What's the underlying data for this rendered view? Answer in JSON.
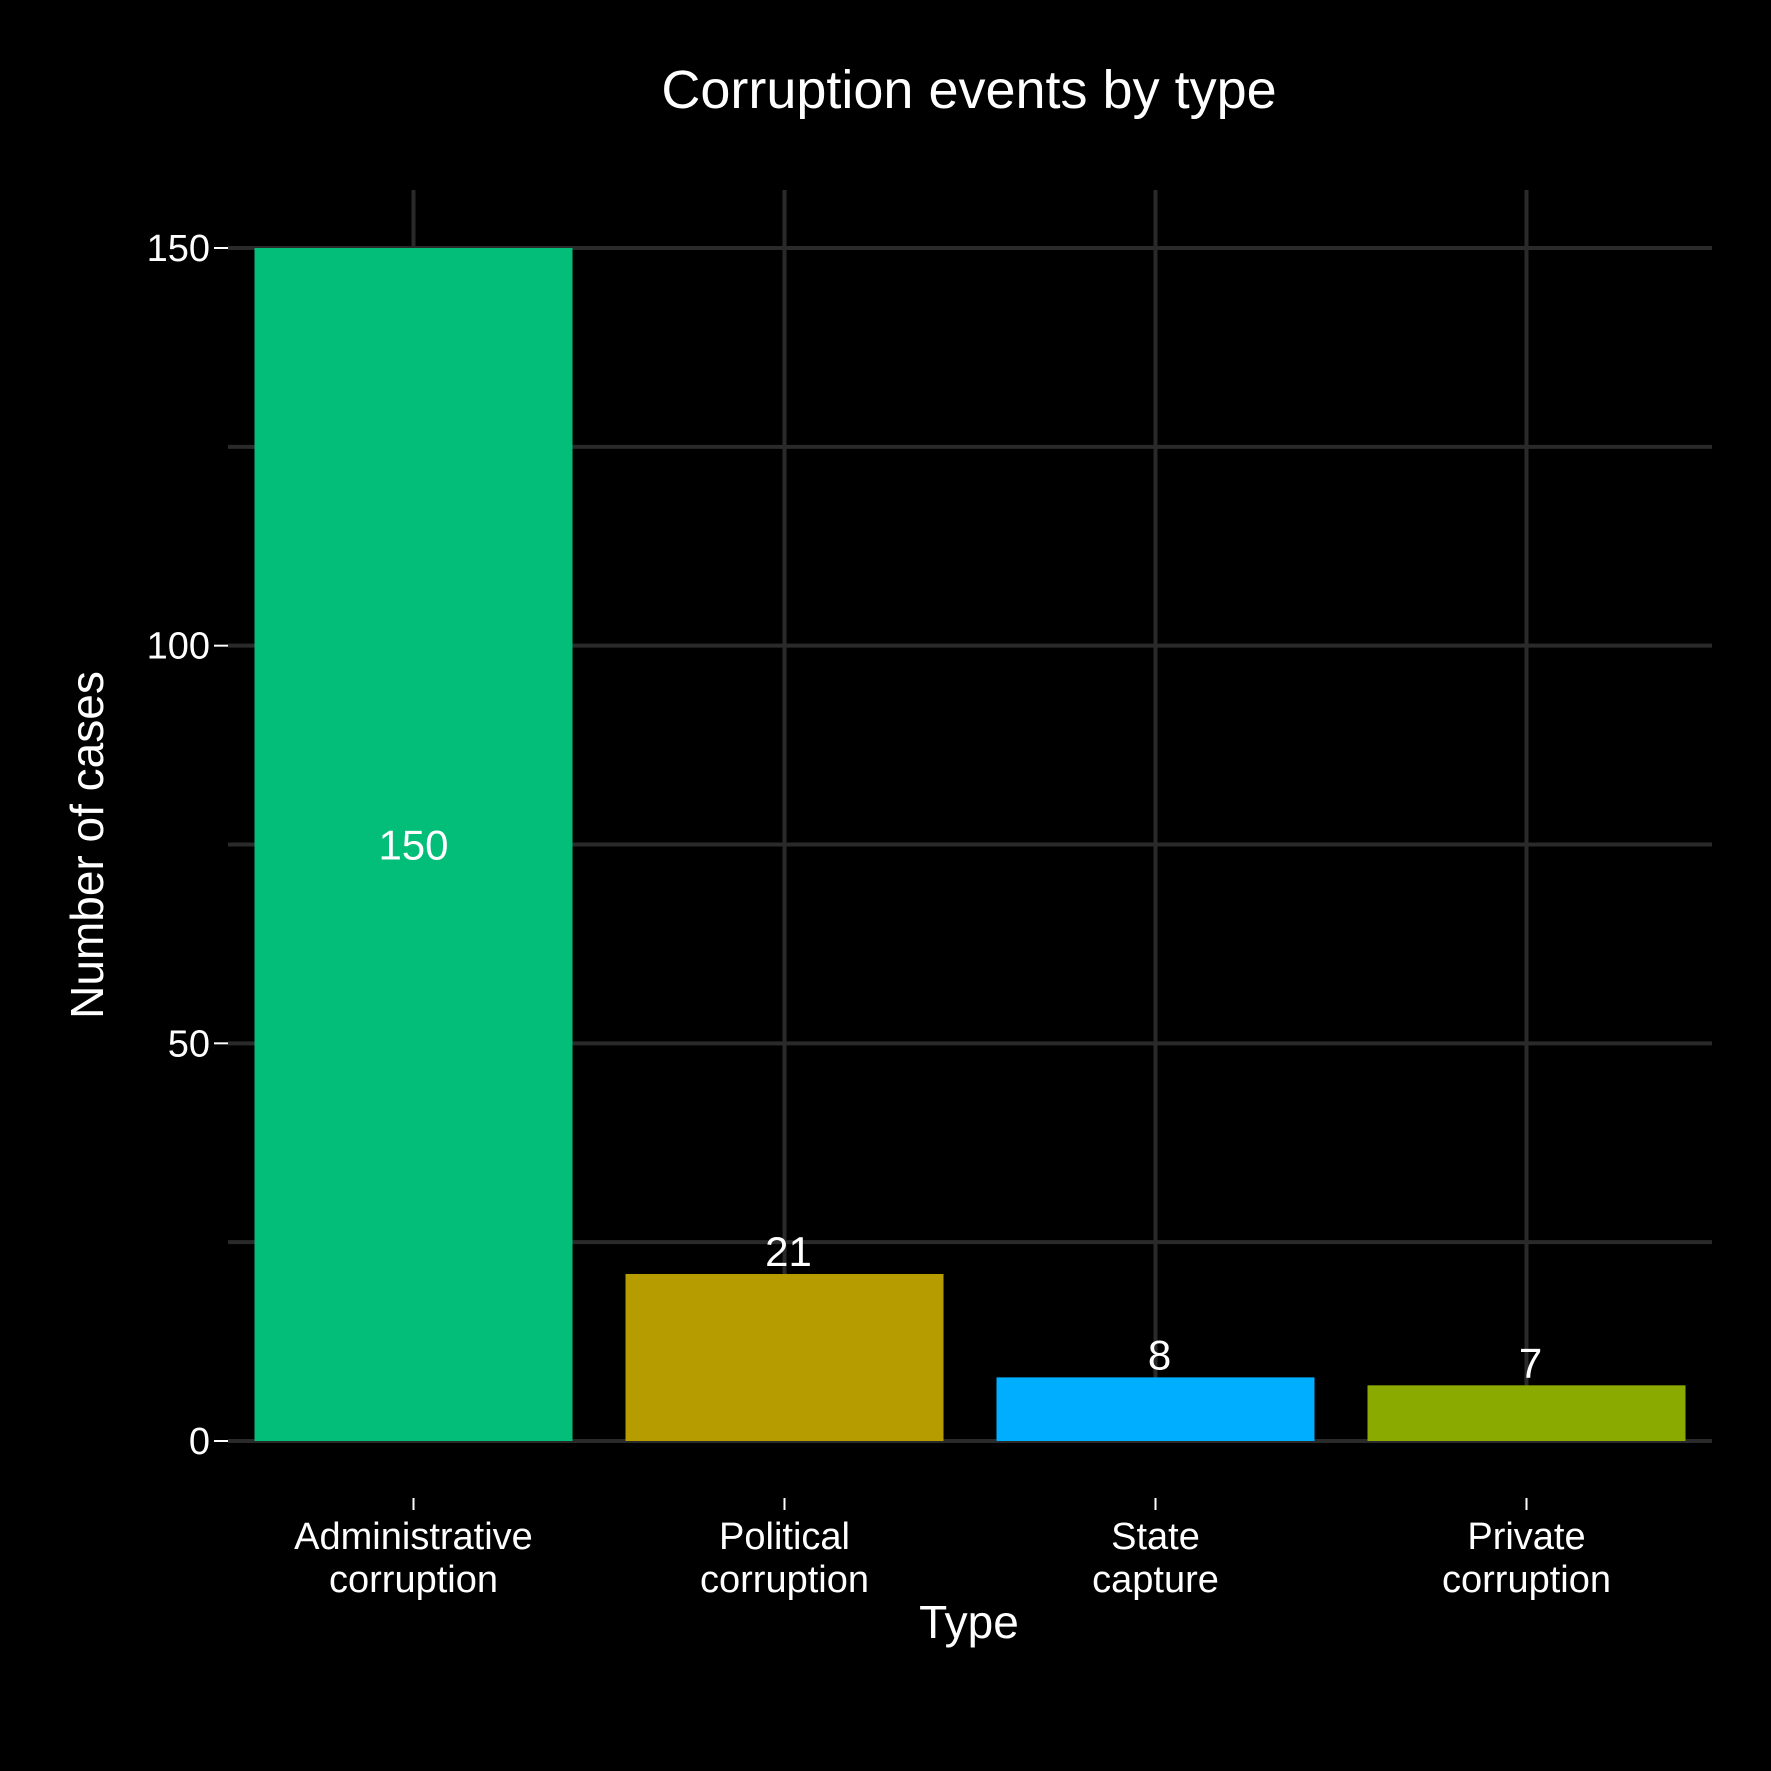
{
  "chart_data": {
    "type": "bar",
    "title": "Corruption events by type",
    "xlabel": "Type",
    "ylabel": "Number of cases",
    "categories": [
      [
        "Administrative",
        "corruption"
      ],
      [
        "Political",
        "corruption"
      ],
      [
        "State",
        "capture"
      ],
      [
        "Private",
        "corruption"
      ]
    ],
    "values": [
      150,
      21,
      8,
      7
    ],
    "value_labels": [
      "150",
      "21",
      "8",
      "7"
    ],
    "colors": [
      "#02be79",
      "#b79c00",
      "#00aeff",
      "#8aaa00"
    ],
    "yticks": [
      0,
      50,
      100,
      150
    ],
    "ytick_labels": [
      "0",
      "50",
      "100",
      "150"
    ],
    "ylim": [
      0,
      150
    ],
    "grid": true,
    "legend": "none",
    "background": "#000000",
    "grid_color": "#2a2a2a"
  }
}
